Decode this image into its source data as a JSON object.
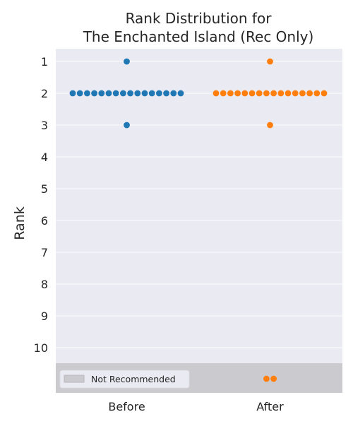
{
  "chart_data": {
    "type": "scatter",
    "title_lines": [
      "Rank Distribution for",
      "The Enchanted Island (Rec Only)"
    ],
    "xlabel": "",
    "ylabel": "Rank",
    "categories": [
      "Before",
      "After"
    ],
    "yticks": [
      "1",
      "2",
      "3",
      "4",
      "5",
      "6",
      "7",
      "8",
      "9",
      "10"
    ],
    "y_inverted": true,
    "grid": true,
    "not_recommended_band": {
      "label": "Not Recommended"
    },
    "legend_position": "lower-left",
    "series": [
      {
        "category": "Before",
        "color": "#1f77b4",
        "ranks": [
          1,
          2,
          2,
          2,
          2,
          2,
          2,
          2,
          2,
          2,
          2,
          2,
          2,
          2,
          2,
          2,
          2,
          3
        ],
        "not_recommended_count": 0
      },
      {
        "category": "After",
        "color": "#ff7f0e",
        "ranks": [
          1,
          2,
          2,
          2,
          2,
          2,
          2,
          2,
          2,
          2,
          2,
          2,
          2,
          2,
          2,
          2,
          2,
          3
        ],
        "not_recommended_count": 2
      }
    ],
    "colors": {
      "plot_background": "#eaeaf2",
      "band": "#cbcacf",
      "grid": "#ffffff"
    }
  }
}
